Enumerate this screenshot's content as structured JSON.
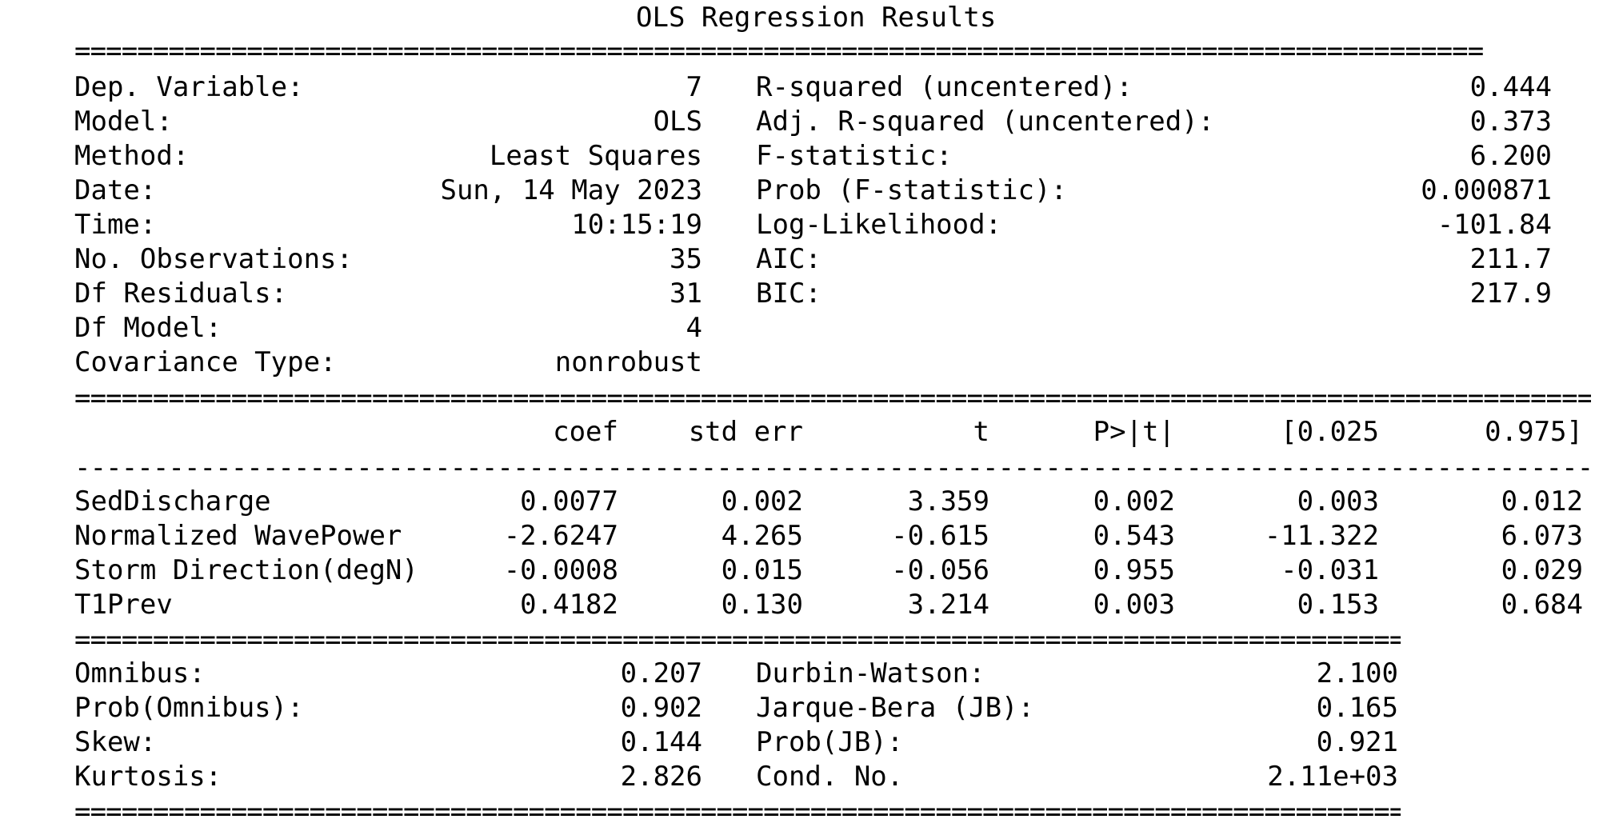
{
  "title": "OLS Regression Results",
  "separators": {
    "double_short": "==========================================================================================",
    "double_long": "=================================================================================================",
    "single_long": "-------------------------------------------------------------------------------------------------"
  },
  "header_left": [
    {
      "label": "Dep. Variable:",
      "value": "7"
    },
    {
      "label": "Model:",
      "value": "OLS"
    },
    {
      "label": "Method:",
      "value": "Least Squares"
    },
    {
      "label": "Date:",
      "value": "Sun, 14 May 2023"
    },
    {
      "label": "Time:",
      "value": "10:15:19"
    },
    {
      "label": "No. Observations:",
      "value": "35"
    },
    {
      "label": "Df Residuals:",
      "value": "31"
    },
    {
      "label": "Df Model:",
      "value": "4"
    },
    {
      "label": "Covariance Type:",
      "value": "nonrobust"
    }
  ],
  "header_right": [
    {
      "label": "R-squared (uncentered):",
      "value": "0.444"
    },
    {
      "label": "Adj. R-squared (uncentered):",
      "value": "0.373"
    },
    {
      "label": "F-statistic:",
      "value": "6.200"
    },
    {
      "label": "Prob (F-statistic):",
      "value": "0.000871"
    },
    {
      "label": "Log-Likelihood:",
      "value": "-101.84"
    },
    {
      "label": "AIC:",
      "value": "211.7"
    },
    {
      "label": "BIC:",
      "value": "217.9"
    }
  ],
  "coef_table": {
    "columns": [
      "coef",
      "std err",
      "t",
      "P>|t|",
      "[0.025",
      "0.975]"
    ],
    "rows": [
      {
        "name": "SedDischarge",
        "values": [
          "0.0077",
          "0.002",
          "3.359",
          "0.002",
          "0.003",
          "0.012"
        ]
      },
      {
        "name": "Normalized WavePower",
        "values": [
          "-2.6247",
          "4.265",
          "-0.615",
          "0.543",
          "-11.322",
          "6.073"
        ]
      },
      {
        "name": "Storm Direction(degN)",
        "values": [
          "-0.0008",
          "0.015",
          "-0.056",
          "0.955",
          "-0.031",
          "0.029"
        ]
      },
      {
        "name": "T1Prev",
        "values": [
          "0.4182",
          "0.130",
          "3.214",
          "0.003",
          "0.153",
          "0.684"
        ]
      }
    ]
  },
  "footer_left": [
    {
      "label": "Omnibus:",
      "value": "0.207"
    },
    {
      "label": "Prob(Omnibus):",
      "value": "0.902"
    },
    {
      "label": "Skew:",
      "value": "0.144"
    },
    {
      "label": "Kurtosis:",
      "value": "2.826"
    }
  ],
  "footer_right": [
    {
      "label": "Durbin-Watson:",
      "value": "2.100"
    },
    {
      "label": "Jarque-Bera (JB):",
      "value": "0.165"
    },
    {
      "label": "Prob(JB):",
      "value": "0.921"
    },
    {
      "label": "Cond. No.",
      "value": "2.11e+03"
    }
  ]
}
